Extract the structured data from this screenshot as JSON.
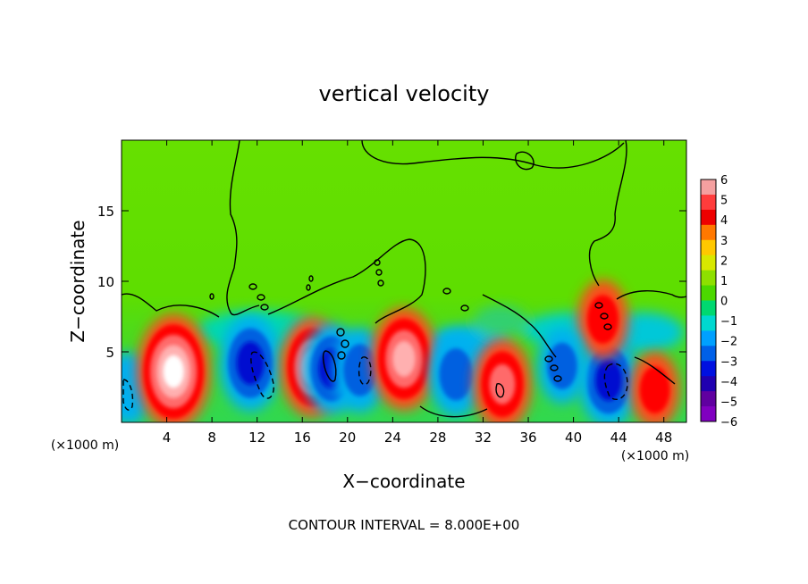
{
  "chart_data": {
    "type": "heatmap",
    "title": "vertical velocity",
    "xlabel": "X−coordinate",
    "ylabel": "Z−coordinate",
    "x_unit_left": "(×1000 m)",
    "x_unit_right": "(×1000 m)",
    "footer": "CONTOUR INTERVAL = 8.000E+00",
    "xlim": [
      0,
      50
    ],
    "ylim": [
      0,
      20
    ],
    "x_ticks": [
      4,
      8,
      12,
      16,
      20,
      24,
      28,
      32,
      36,
      40,
      44,
      48
    ],
    "x_tick_labels": [
      "4",
      "8",
      "12",
      "16",
      "20",
      "24",
      "28",
      "32",
      "36",
      "40",
      "44",
      "48"
    ],
    "y_ticks": [
      5,
      10,
      15
    ],
    "y_tick_labels": [
      "5",
      "10",
      "15"
    ],
    "colorbar": {
      "min": -6,
      "max": 6,
      "tick_labels": [
        "6",
        "5",
        "4",
        "3",
        "2",
        "1",
        "0",
        "−1",
        "−2",
        "−3",
        "−4",
        "−5",
        "−6"
      ],
      "colors": [
        "#f4a0a0",
        "#ff3c3c",
        "#ee0000",
        "#ff7800",
        "#ffc800",
        "#d8e800",
        "#8ee000",
        "#4cd800",
        "#00d870",
        "#00d8d0",
        "#00a0ff",
        "#0060e8",
        "#0010e0",
        "#2000b0",
        "#6000a0",
        "#8000c0"
      ]
    },
    "cells": [
      {
        "x": 0.6,
        "z": 2.4,
        "w": -2.5
      },
      {
        "x": 4.6,
        "z": 3.6,
        "w": 9.5
      },
      {
        "x": 11.4,
        "z": 4.2,
        "w": -6.5
      },
      {
        "x": 16.9,
        "z": 3.9,
        "w": 7.0
      },
      {
        "x": 18.6,
        "z": 3.8,
        "w": -5.5
      },
      {
        "x": 21.1,
        "z": 3.7,
        "w": -4.5
      },
      {
        "x": 25.0,
        "z": 4.5,
        "w": 7.5
      },
      {
        "x": 29.6,
        "z": 3.4,
        "w": -4.5
      },
      {
        "x": 33.7,
        "z": 2.7,
        "w": 5.5
      },
      {
        "x": 43.1,
        "z": 3.0,
        "w": -6.0
      },
      {
        "x": 47.2,
        "z": 2.3,
        "w": 3.0
      },
      {
        "x": 42.6,
        "z": 7.3,
        "w": 3.5
      },
      {
        "x": 39.0,
        "z": 4.0,
        "w": -3.0
      }
    ]
  }
}
